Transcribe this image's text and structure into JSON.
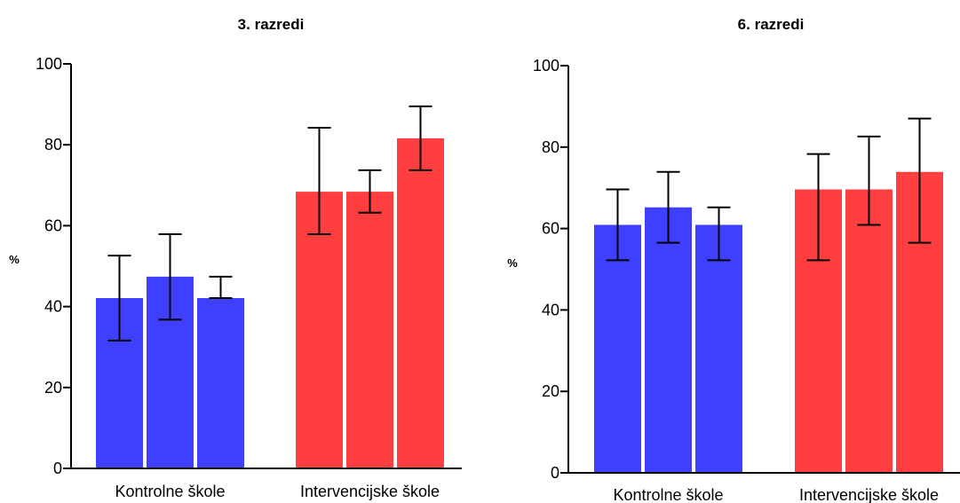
{
  "colors": {
    "control": "#3F3FFF",
    "intervention": "#FF3F3F"
  },
  "chart_data": [
    {
      "type": "bar",
      "title": "3. razredi",
      "xlabel": "",
      "ylabel": "%",
      "ylim": [
        0,
        100
      ],
      "yticks": [
        0,
        20,
        40,
        60,
        80,
        100
      ],
      "grid": false,
      "groups": [
        {
          "label": "Kontrolne škole",
          "color_key": "control",
          "bars": [
            {
              "value": 42.1,
              "err_low": 31.6,
              "err_high": 52.6
            },
            {
              "value": 47.4,
              "err_low": 36.8,
              "err_high": 57.9
            },
            {
              "value": 42.1,
              "err_low": 42.1,
              "err_high": 47.4
            }
          ]
        },
        {
          "label": "Intervencijske škole",
          "color_key": "intervention",
          "bars": [
            {
              "value": 68.4,
              "err_low": 57.9,
              "err_high": 84.2
            },
            {
              "value": 68.4,
              "err_low": 63.2,
              "err_high": 73.7
            },
            {
              "value": 81.6,
              "err_low": 73.7,
              "err_high": 89.5
            }
          ]
        }
      ]
    },
    {
      "type": "bar",
      "title": "6. razredi",
      "xlabel": "",
      "ylabel": "%",
      "ylim": [
        0,
        100
      ],
      "yticks": [
        0,
        20,
        40,
        60,
        80,
        100
      ],
      "grid": false,
      "groups": [
        {
          "label": "Kontrolne škole",
          "color_key": "control",
          "bars": [
            {
              "value": 60.9,
              "err_low": 52.2,
              "err_high": 69.6
            },
            {
              "value": 65.2,
              "err_low": 56.5,
              "err_high": 73.9
            },
            {
              "value": 60.9,
              "err_low": 52.2,
              "err_high": 65.2
            }
          ]
        },
        {
          "label": "Intervencijske škole",
          "color_key": "intervention",
          "bars": [
            {
              "value": 69.6,
              "err_low": 52.2,
              "err_high": 78.3
            },
            {
              "value": 69.6,
              "err_low": 60.9,
              "err_high": 82.6
            },
            {
              "value": 73.9,
              "err_low": 56.5,
              "err_high": 87.0
            }
          ]
        }
      ]
    }
  ]
}
